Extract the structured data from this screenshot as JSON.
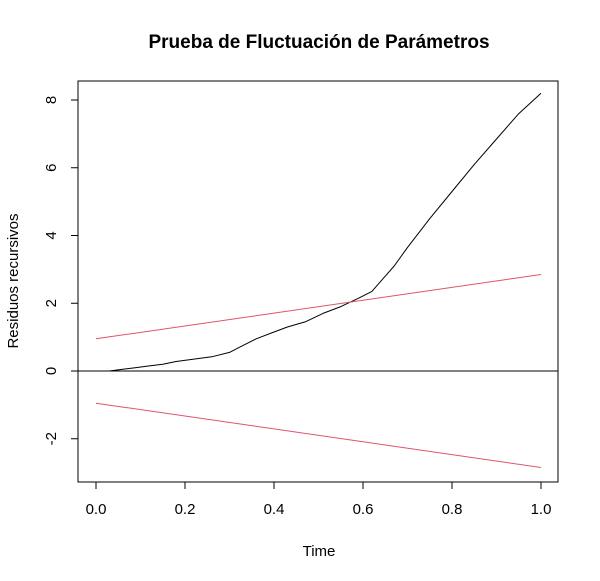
{
  "chart_data": {
    "type": "line",
    "title": "Prueba de Fluctuación de Parámetros",
    "xlabel": "Time",
    "ylabel": "Residuos recursivos",
    "xlim": [
      0,
      1
    ],
    "ylim": [
      -3.3,
      8.3
    ],
    "x_ticks": [
      0.0,
      0.2,
      0.4,
      0.6,
      0.8,
      1.0
    ],
    "x_tick_labels": [
      "0.0",
      "0.2",
      "0.4",
      "0.6",
      "0.8",
      "1.0"
    ],
    "y_ticks": [
      -2,
      0,
      2,
      4,
      6,
      8
    ],
    "y_tick_labels": [
      "-2",
      "0",
      "2",
      "4",
      "6",
      "8"
    ],
    "grid": false,
    "reference_line": {
      "y": 0,
      "color": "#000000"
    },
    "series": [
      {
        "color": "#000000",
        "x": [
          0.03,
          0.06,
          0.09,
          0.12,
          0.15,
          0.18,
          0.22,
          0.26,
          0.3,
          0.33,
          0.36,
          0.4,
          0.43,
          0.47,
          0.51,
          0.55,
          0.59,
          0.62,
          0.64,
          0.67,
          0.7,
          0.75,
          0.8,
          0.85,
          0.9,
          0.95,
          1.0
        ],
        "y": [
          0.0,
          0.05,
          0.1,
          0.15,
          0.2,
          0.28,
          0.35,
          0.42,
          0.55,
          0.75,
          0.95,
          1.15,
          1.3,
          1.45,
          1.7,
          1.9,
          2.15,
          2.35,
          2.65,
          3.1,
          3.65,
          4.5,
          5.3,
          6.1,
          6.85,
          7.6,
          8.2
        ]
      },
      {
        "color": "#DF536B",
        "x": [
          0.0,
          1.0
        ],
        "y": [
          0.95,
          2.85
        ]
      },
      {
        "color": "#DF536B",
        "x": [
          0.0,
          1.0
        ],
        "y": [
          -0.95,
          -2.85
        ]
      }
    ]
  }
}
